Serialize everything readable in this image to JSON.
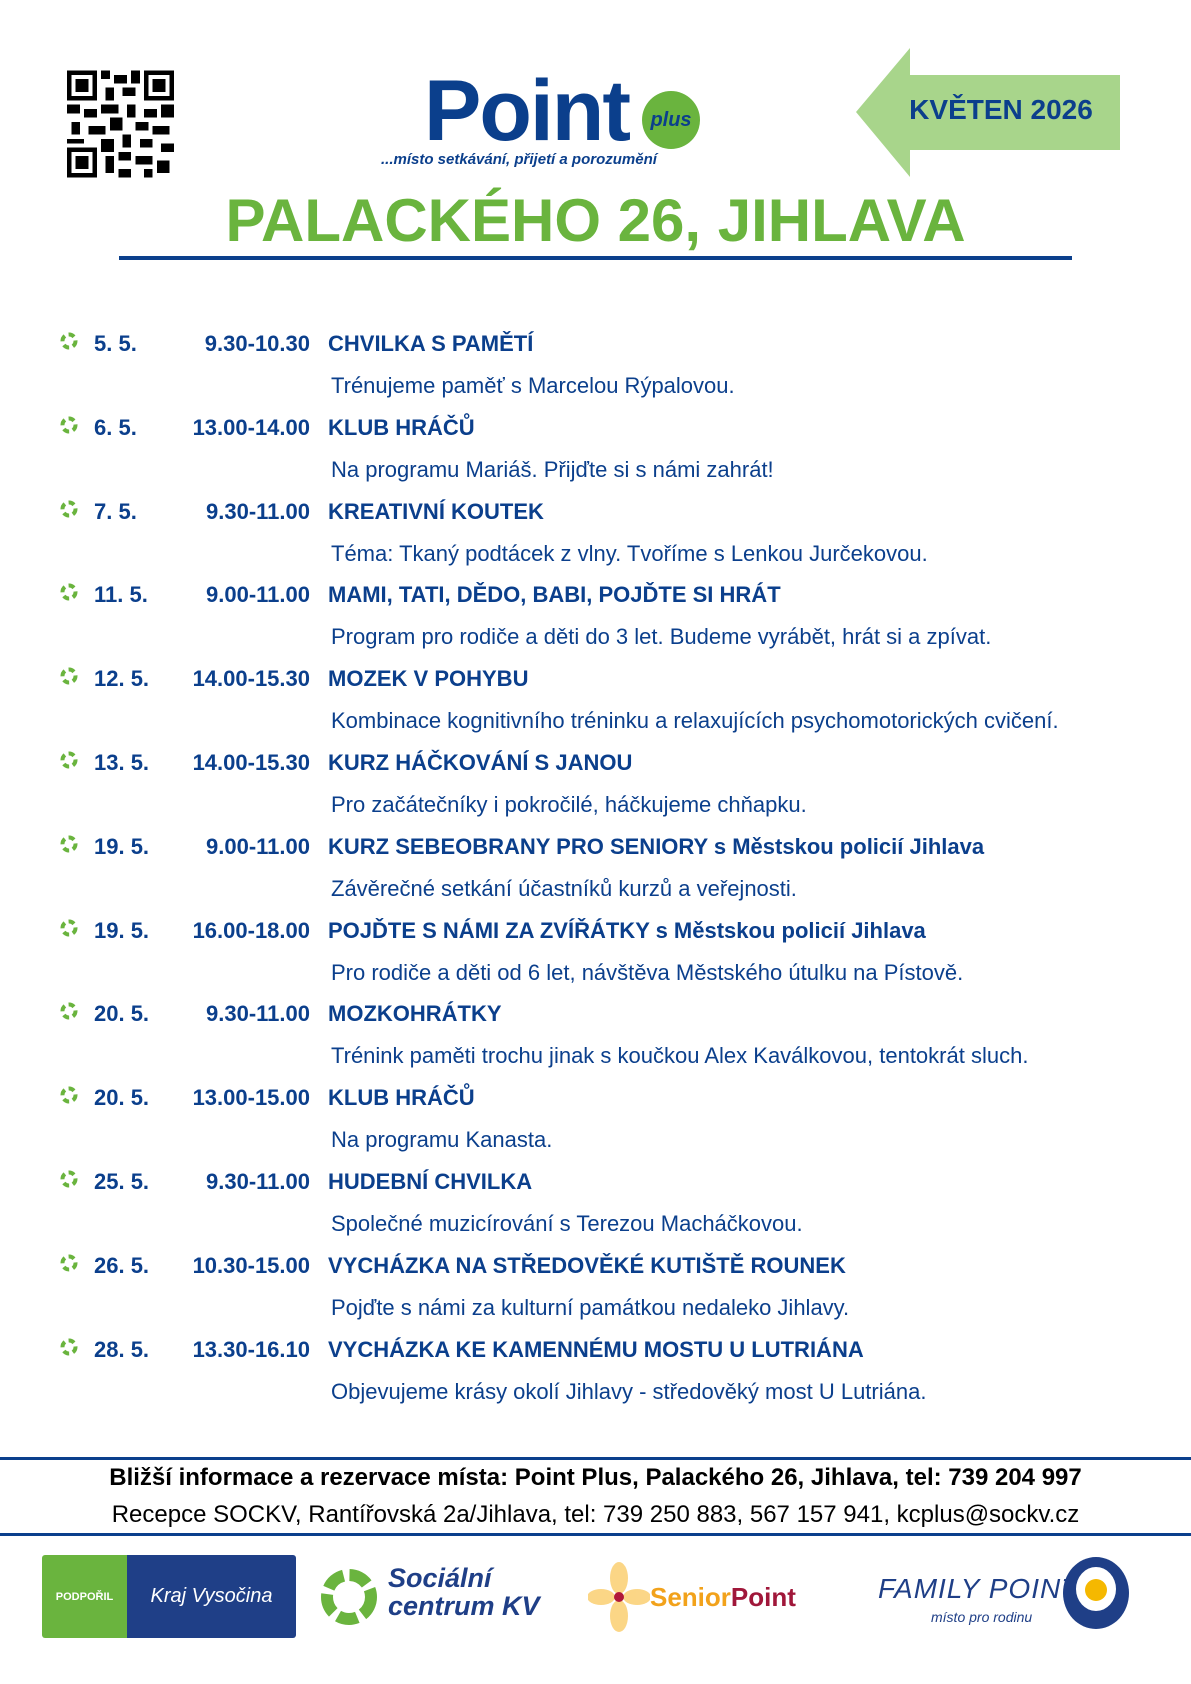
{
  "header": {
    "logo_main": "Point",
    "logo_plus": "plus",
    "tagline": "...místo setkávání, přijetí a porozumění",
    "month": "KVĚTEN 2026",
    "title": "PALACKÉHO 26, JIHLAVA"
  },
  "colors": {
    "blue": "#0b3f8c",
    "green": "#6ab43e",
    "arrow_green": "#a8d58b"
  },
  "events": [
    {
      "date": "5. 5.",
      "time": "9.30-10.30",
      "title": "CHVILKA S PAMĚTÍ",
      "desc": "Trénujeme paměť s Marcelou Rýpalovou."
    },
    {
      "date": "6. 5.",
      "time": "13.00-14.00",
      "title": "KLUB HRÁČŮ",
      "desc": "Na programu Mariáš. Přijďte si s námi zahrát!"
    },
    {
      "date": "7. 5.",
      "time": "9.30-11.00",
      "title": "KREATIVNÍ KOUTEK",
      "desc": "Téma: Tkaný podtácek z vlny. Tvoříme s Lenkou Jurčekovou."
    },
    {
      "date": "11. 5.",
      "time": "9.00-11.00",
      "title": "MAMI, TATI, DĚDO, BABI, POJĎTE SI HRÁT",
      "desc": "Program pro rodiče a děti do 3 let. Budeme vyrábět, hrát si a zpívat."
    },
    {
      "date": "12. 5.",
      "time": "14.00-15.30",
      "title": "MOZEK V POHYBU",
      "desc": "Kombinace kognitivního tréninku a relaxujících psychomotorických cvičení."
    },
    {
      "date": "13. 5.",
      "time": "14.00-15.30",
      "title": "KURZ HÁČKOVÁNÍ S JANOU",
      "desc": "Pro začátečníky i pokročilé, háčkujeme chňapku."
    },
    {
      "date": "19. 5.",
      "time": "9.00-11.00",
      "title": "KURZ SEBEOBRANY PRO SENIORY s Městskou policií Jihlava",
      "desc": "Závěrečné setkání účastníků kurzů a veřejnosti."
    },
    {
      "date": "19. 5.",
      "time": "16.00-18.00",
      "title": "POJĎTE S NÁMI ZA ZVÍŘÁTKY s Městskou policií Jihlava",
      "desc": "Pro rodiče a děti od 6 let, návštěva Městského útulku na Pístově."
    },
    {
      "date": "20. 5.",
      "time": "9.30-11.00",
      "title": "MOZKOHRÁTKY",
      "desc": "Trénink paměti trochu jinak s koučkou Alex Kaválkovou, tentokrát sluch."
    },
    {
      "date": "20. 5.",
      "time": "13.00-15.00",
      "title": "KLUB HRÁČŮ",
      "desc": "Na programu Kanasta."
    },
    {
      "date": "25. 5.",
      "time": "9.30-11.00",
      "title": "HUDEBNÍ CHVILKA",
      "desc": "Společné muzicírování s Terezou Macháčkovou."
    },
    {
      "date": "26. 5.",
      "time": "10.30-15.00",
      "title": "VYCHÁZKA NA STŘEDOVĚKÉ KUTIŠTĚ ROUNEK",
      "desc": "Pojďte s námi za kulturní památkou nedaleko Jihlavy."
    },
    {
      "date": "28. 5.",
      "time": "13.30-16.10",
      "title": "VYCHÁZKA KE KAMENNÉMU MOSTU U LUTRIÁNA",
      "desc": "Objevujeme krásy okolí Jihlavy - středověký most U Lutriána."
    }
  ],
  "footer": {
    "info_bold": "Bližší informace a rezervace místa: Point Plus, Palackého 26, Jihlava, tel: 739 204 997",
    "info": "Recepce SOCKV, Rantířovská 2a/Jihlava, tel: 739 250 883, 567 157 941, kcplus@sockv.cz",
    "logos": {
      "kraj_support": "PODPOŘIL",
      "kraj_name": "Kraj Vysočina",
      "social": "Sociální centrum KV",
      "senior_a": "Senior",
      "senior_b": "Point",
      "family": "FAMILY POINT",
      "family_sub": "místo pro rodinu"
    }
  }
}
